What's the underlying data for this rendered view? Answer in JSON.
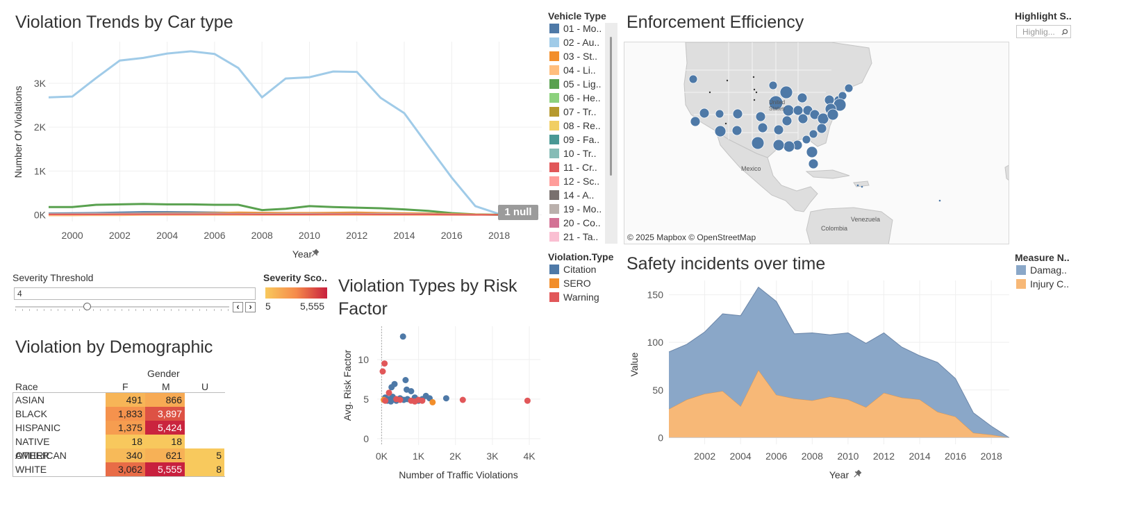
{
  "line_chart": {
    "title": "Violation Trends by Car type",
    "ylabel": "Number Of Violations",
    "xlabel": "Year",
    "pin_icon": "pin-icon",
    "null_badge": "1 null"
  },
  "vehicle_legend": {
    "title": "Vehicle Type",
    "items": [
      {
        "label": "01 - Mo..",
        "color": "#4e79a7"
      },
      {
        "label": "02 - Au..",
        "color": "#a0cbe8"
      },
      {
        "label": "03 - St..",
        "color": "#f28e2b"
      },
      {
        "label": "04 - Li..",
        "color": "#ffbe7d"
      },
      {
        "label": "05 - Lig..",
        "color": "#59a14f"
      },
      {
        "label": "06 - He..",
        "color": "#8cd17d"
      },
      {
        "label": "07 - Tr..",
        "color": "#b6992d"
      },
      {
        "label": "08 - Re..",
        "color": "#f1ce63"
      },
      {
        "label": "09 - Fa..",
        "color": "#499894"
      },
      {
        "label": "10 - Tr..",
        "color": "#86bcb6"
      },
      {
        "label": "11 - Cr..",
        "color": "#e15759"
      },
      {
        "label": "12 - Sc..",
        "color": "#ff9d9a"
      },
      {
        "label": "14 - A..",
        "color": "#79706e"
      },
      {
        "label": "19 - Mo..",
        "color": "#bab0ac"
      },
      {
        "label": "20 - Co..",
        "color": "#d37295"
      },
      {
        "label": "21 - Ta..",
        "color": "#fabfd2"
      }
    ]
  },
  "map": {
    "title": "Enforcement Efficiency",
    "attribution": "© 2025 Mapbox © OpenStreetMap",
    "labels": {
      "us": "United States",
      "mexico": "Mexico",
      "venezuela": "Venezuela",
      "colombia": "Colombia"
    }
  },
  "highlight": {
    "title": "Highlight S..",
    "placeholder": "Highlig...",
    "search_icon": "search-icon"
  },
  "severity_threshold": {
    "title": "Severity Threshold",
    "value": "4",
    "prev": "‹",
    "next": "›"
  },
  "severity_score": {
    "title": "Severity Sco..",
    "min": "5",
    "max": "5,555",
    "color_low": "#f8c95d",
    "color_high": "#c8203e"
  },
  "scatter": {
    "title_line1": "Violation Types by Risk",
    "title_line2": "Factor"
  },
  "violation_type_legend": {
    "title": "Violation.Type",
    "items": [
      {
        "label": "Citation",
        "color": "#4e79a7"
      },
      {
        "label": "SERO",
        "color": "#f28e2b"
      },
      {
        "label": "Warning",
        "color": "#e15759"
      }
    ]
  },
  "area": {
    "title": "Safety incidents over time",
    "ylabel": "Value",
    "xlabel": "Year"
  },
  "measure_legend": {
    "title": "Measure N..",
    "items": [
      {
        "label": "Damag..",
        "color": "#8aa7c8"
      },
      {
        "label": "Injury C..",
        "color": "#f7b877"
      }
    ]
  },
  "demographic": {
    "title": "Violation by Demographic",
    "gender_header": "Gender",
    "race_header": "Race",
    "columns": [
      "F",
      "M",
      "U"
    ],
    "rows": [
      {
        "race": "ASIAN",
        "values": [
          "491",
          "866",
          ""
        ]
      },
      {
        "race": "BLACK",
        "values": [
          "1,833",
          "3,897",
          ""
        ]
      },
      {
        "race": "HISPANIC",
        "values": [
          "1,375",
          "5,424",
          ""
        ]
      },
      {
        "race": "NATIVE AMERICAN",
        "values": [
          "18",
          "18",
          ""
        ]
      },
      {
        "race": "OTHER",
        "values": [
          "340",
          "621",
          "5"
        ]
      },
      {
        "race": "WHITE",
        "values": [
          "3,062",
          "5,555",
          "8"
        ]
      }
    ]
  },
  "chart_data": [
    {
      "type": "line",
      "title": "Violation Trends by Car type",
      "xlabel": "Year",
      "ylabel": "Number Of Violations",
      "x": [
        1999,
        2000,
        2001,
        2002,
        2003,
        2004,
        2005,
        2006,
        2007,
        2008,
        2009,
        2010,
        2011,
        2012,
        2013,
        2014,
        2015,
        2016,
        2017,
        2018,
        2019
      ],
      "x_ticks": [
        2000,
        2002,
        2004,
        2006,
        2008,
        2010,
        2012,
        2014,
        2016,
        2018
      ],
      "y_ticks": [
        {
          "v": 0,
          "label": "0K"
        },
        {
          "v": 1000,
          "label": "1K"
        },
        {
          "v": 2000,
          "label": "2K"
        },
        {
          "v": 3000,
          "label": "3K"
        }
      ],
      "xlim": [
        1999,
        2019.8
      ],
      "ylim": [
        -150,
        3950
      ],
      "series": [
        {
          "name": "02 - Au..",
          "color": "#a0cbe8",
          "values": [
            2680,
            2700,
            3120,
            3520,
            3580,
            3680,
            3730,
            3670,
            3350,
            2680,
            3110,
            3140,
            3270,
            3260,
            2670,
            2320,
            1580,
            850,
            200,
            20,
            0
          ]
        },
        {
          "name": "05 - Lig..",
          "color": "#59a14f",
          "values": [
            180,
            180,
            230,
            240,
            250,
            240,
            240,
            230,
            230,
            110,
            140,
            200,
            180,
            165,
            150,
            125,
            90,
            40,
            10,
            2,
            0
          ]
        },
        {
          "name": "01 - Mo..",
          "color": "#4e79a7",
          "values": [
            40,
            45,
            50,
            60,
            70,
            70,
            65,
            60,
            55,
            50,
            45,
            45,
            50,
            50,
            45,
            40,
            35,
            20,
            5,
            0,
            0
          ]
        },
        {
          "name": "03 - St..",
          "color": "#f28e2b",
          "values": [
            20,
            20,
            25,
            30,
            40,
            45,
            45,
            50,
            60,
            55,
            50,
            50,
            55,
            60,
            50,
            45,
            35,
            25,
            15,
            5,
            0
          ]
        },
        {
          "name": "04 - Li..",
          "color": "#ffbe7d",
          "values": [
            -15,
            -15,
            -10,
            -10,
            -5,
            -5,
            -5,
            -5,
            -5,
            -5,
            -5,
            -5,
            -5,
            -5,
            -5,
            -5,
            -5,
            -5,
            -5,
            0,
            0
          ]
        },
        {
          "name": "19 - Mo..",
          "color": "#bab0ac",
          "values": [
            30,
            30,
            35,
            35,
            35,
            35,
            35,
            35,
            30,
            30,
            30,
            30,
            30,
            30,
            30,
            25,
            20,
            15,
            5,
            0,
            0
          ]
        },
        {
          "name": "11 - Cr..",
          "color": "#e15759",
          "values": [
            10,
            10,
            10,
            15,
            15,
            15,
            15,
            15,
            15,
            10,
            10,
            10,
            15,
            15,
            10,
            10,
            10,
            5,
            0,
            0,
            0
          ]
        }
      ]
    },
    {
      "type": "scatter",
      "title": "Violation Types by Risk Factor",
      "xlabel": "Number of Traffic Violations",
      "ylabel": "Avg. Risk Factor",
      "xlim": [
        -120,
        4300
      ],
      "ylim": [
        -0.8,
        14.2
      ],
      "x_ticks": [
        {
          "v": 0,
          "label": "0K"
        },
        {
          "v": 1000,
          "label": "1K"
        },
        {
          "v": 2000,
          "label": "2K"
        },
        {
          "v": 3000,
          "label": "3K"
        },
        {
          "v": 4000,
          "label": "4K"
        }
      ],
      "y_ticks": [
        {
          "v": 0,
          "label": "0"
        },
        {
          "v": 5,
          "label": "5"
        },
        {
          "v": 10,
          "label": "10"
        }
      ],
      "series": [
        {
          "name": "Citation",
          "color": "#4e79a7",
          "points": [
            [
              580,
              12.9
            ],
            [
              650,
              7.4
            ],
            [
              350,
              6.9
            ],
            [
              270,
              6.5
            ],
            [
              680,
              6.2
            ],
            [
              800,
              6.0
            ],
            [
              100,
              5.2
            ],
            [
              200,
              5.0
            ],
            [
              300,
              5.3
            ],
            [
              400,
              4.8
            ],
            [
              500,
              5.1
            ],
            [
              600,
              4.9
            ],
            [
              700,
              5.0
            ],
            [
              900,
              5.2
            ],
            [
              1000,
              4.8
            ],
            [
              1100,
              5.0
            ],
            [
              1200,
              5.4
            ],
            [
              1300,
              5.1
            ],
            [
              1750,
              5.1
            ],
            [
              150,
              4.8
            ],
            [
              250,
              4.7
            ]
          ]
        },
        {
          "name": "SERO",
          "color": "#f28e2b",
          "points": [
            [
              1380,
              4.6
            ],
            [
              60,
              4.9
            ]
          ]
        },
        {
          "name": "Warning",
          "color": "#e15759",
          "points": [
            [
              30,
              8.5
            ],
            [
              80,
              9.5
            ],
            [
              200,
              5.8
            ],
            [
              100,
              4.8
            ],
            [
              400,
              5.0
            ],
            [
              500,
              4.9
            ],
            [
              800,
              4.8
            ],
            [
              900,
              4.7
            ],
            [
              1000,
              4.9
            ],
            [
              1100,
              4.8
            ],
            [
              2200,
              4.9
            ],
            [
              3950,
              4.8
            ]
          ]
        }
      ]
    },
    {
      "type": "area",
      "title": "Safety incidents over time",
      "xlabel": "Year",
      "ylabel": "Value",
      "x": [
        2000,
        2001,
        2002,
        2003,
        2004,
        2005,
        2006,
        2007,
        2008,
        2009,
        2010,
        2011,
        2012,
        2013,
        2014,
        2015,
        2016,
        2017,
        2018,
        2019
      ],
      "x_ticks": [
        2002,
        2004,
        2006,
        2008,
        2010,
        2012,
        2014,
        2016,
        2018
      ],
      "y_ticks": [
        {
          "v": 0,
          "label": "0"
        },
        {
          "v": 50,
          "label": "50"
        },
        {
          "v": 100,
          "label": "100"
        },
        {
          "v": 150,
          "label": "150"
        }
      ],
      "xlim": [
        2000,
        2019
      ],
      "ylim": [
        -7,
        165
      ],
      "series": [
        {
          "name": "Injury C..",
          "color": "#f7b877",
          "values": [
            30,
            40,
            46,
            49,
            33,
            71,
            45,
            41,
            39,
            43,
            40,
            32,
            47,
            42,
            40,
            27,
            22,
            5,
            3,
            0
          ]
        },
        {
          "name": "Damag..",
          "color": "#8aa7c8",
          "values": [
            60,
            58,
            65,
            81,
            95,
            87,
            98,
            68,
            71,
            65,
            70,
            67,
            63,
            53,
            46,
            52,
            40,
            21,
            9,
            0
          ]
        }
      ]
    }
  ]
}
